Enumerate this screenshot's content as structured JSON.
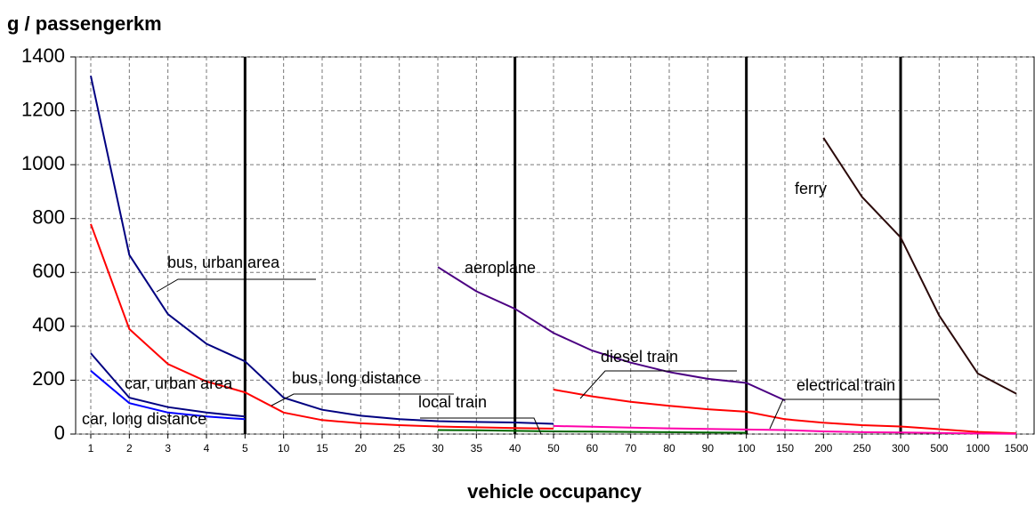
{
  "chart_data": {
    "type": "line",
    "ylabel": "g / passengerkm",
    "xlabel": "vehicle occupancy",
    "categories": [
      1,
      2,
      3,
      4,
      5,
      10,
      15,
      20,
      25,
      30,
      35,
      40,
      50,
      60,
      70,
      80,
      90,
      100,
      150,
      200,
      250,
      300,
      500,
      1000,
      1500
    ],
    "ylim": [
      0,
      1400
    ],
    "yticks": [
      0,
      200,
      400,
      600,
      800,
      1000,
      1200,
      1400
    ],
    "grid": true,
    "thick_gridlines": [
      5,
      40,
      100,
      300
    ],
    "series": [
      {
        "name": "bus, urban area",
        "color": "#000080",
        "values": [
          1330,
          665,
          445,
          335,
          270,
          135,
          90,
          68,
          55,
          48,
          45,
          43,
          38,
          null,
          null,
          null,
          null,
          null,
          null,
          null,
          null,
          null,
          null,
          null,
          null
        ]
      },
      {
        "name": "bus, long distance",
        "color": "#ff0000",
        "values": [
          780,
          390,
          260,
          195,
          155,
          80,
          52,
          40,
          33,
          28,
          25,
          22,
          20,
          null,
          null,
          null,
          null,
          null,
          null,
          null,
          null,
          null,
          null,
          null,
          null
        ]
      },
      {
        "name": "car, urban area",
        "color": "#000080",
        "values": [
          300,
          135,
          100,
          80,
          65,
          null,
          null,
          null,
          null,
          null,
          null,
          null,
          null,
          null,
          null,
          null,
          null,
          null,
          null,
          null,
          null,
          null,
          null,
          null,
          null
        ]
      },
      {
        "name": "car, long distance",
        "color": "#0000ff",
        "values": [
          235,
          115,
          80,
          65,
          55,
          null,
          null,
          null,
          null,
          null,
          null,
          null,
          null,
          null,
          null,
          null,
          null,
          null,
          null,
          null,
          null,
          null,
          null,
          null,
          null
        ]
      },
      {
        "name": "aeroplane",
        "color": "#4b0082",
        "values": [
          null,
          null,
          null,
          null,
          null,
          null,
          null,
          null,
          null,
          620,
          530,
          465,
          375,
          310,
          265,
          230,
          205,
          190,
          125,
          null,
          null,
          null,
          null,
          null,
          null
        ]
      },
      {
        "name": "diesel train",
        "color": "#ff0000",
        "values": [
          null,
          null,
          null,
          null,
          null,
          null,
          null,
          null,
          null,
          null,
          null,
          null,
          165,
          140,
          120,
          105,
          92,
          83,
          55,
          42,
          33,
          28,
          18,
          8,
          3
        ]
      },
      {
        "name": "electrical train",
        "color": "#ff00aa",
        "values": [
          null,
          null,
          null,
          null,
          null,
          null,
          null,
          null,
          null,
          null,
          null,
          null,
          30,
          27,
          24,
          21,
          19,
          17,
          15,
          10,
          7,
          6,
          4,
          2,
          1
        ]
      },
      {
        "name": "local train",
        "color": "#006400",
        "values": [
          null,
          null,
          null,
          null,
          null,
          null,
          null,
          null,
          null,
          15,
          14,
          12,
          10,
          9,
          8,
          7,
          6,
          5,
          null,
          null,
          null,
          null,
          null,
          null,
          null
        ]
      },
      {
        "name": "ferry",
        "color": "#2b0a0a",
        "values": [
          null,
          null,
          null,
          null,
          null,
          null,
          null,
          null,
          null,
          null,
          null,
          null,
          null,
          null,
          null,
          null,
          null,
          null,
          null,
          1100,
          880,
          730,
          440,
          225,
          150
        ]
      }
    ]
  }
}
